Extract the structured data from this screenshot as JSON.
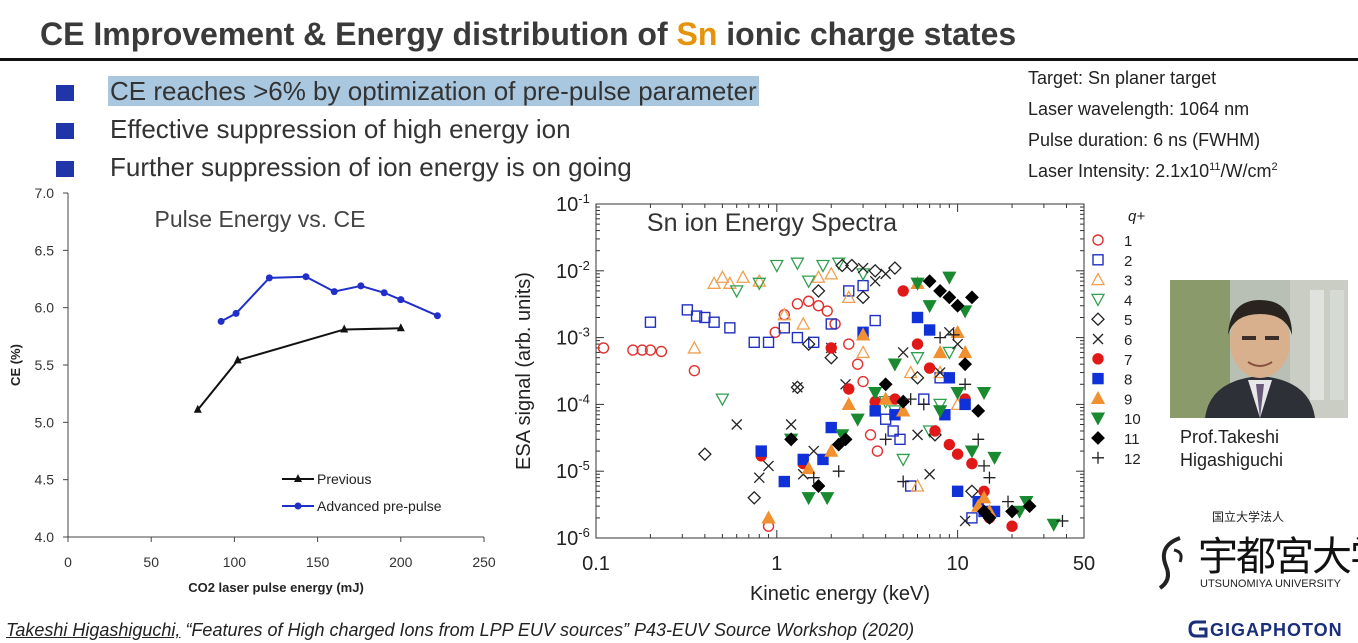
{
  "slide": {
    "title_pre": "CE Improvement & Energy distribution of ",
    "title_sn": "Sn",
    "title_post": " ionic charge states",
    "bullets": [
      "CE reaches >6% by optimization of pre-pulse parameter",
      "Effective suppression of high energy ion",
      "Further suppression of ion energy is on going"
    ],
    "params": {
      "target": "Target: Sn planer target",
      "wavelength": "Laser wavelength: 1064 nm",
      "duration": "Pulse duration: 6 ns (FWHM)",
      "intensity_pre": "Laser Intensity: 2.1x10",
      "intensity_exp": "11",
      "intensity_post": "/W/cm",
      "intensity_sq": "2"
    },
    "person": {
      "line1": "Prof.Takeshi",
      "line2": "Higashiguchi"
    },
    "university": {
      "small": "国立大学法人",
      "name": "宇都宮大学",
      "english": "UTSUNOMIYA UNIVERSITY"
    },
    "company": "GIGAPHOTON",
    "reference": {
      "author": "Takeshi Higashiguchi,",
      "text": " “Features of High charged Ions from LPP EUV sources” P43-EUV Source Workshop (2020)"
    }
  },
  "colors": {
    "sn": "#e6920a",
    "bullet": "#1f35a8",
    "highlight": "#a9c8e0",
    "advanced": "#1f2fc8",
    "previous": "#111111"
  },
  "chart_data": [
    {
      "type": "line",
      "title": "Pulse Energy vs. CE",
      "xlabel": "CO2 laser pulse energy (mJ)",
      "ylabel": "CE (%)",
      "xlim": [
        0,
        250
      ],
      "ylim": [
        4.0,
        7.0
      ],
      "xticks": [
        "0",
        "50",
        "100",
        "150",
        "200",
        "250"
      ],
      "yticks": [
        "4.0",
        "4.5",
        "5.0",
        "5.5",
        "6.0",
        "6.5",
        "7.0"
      ],
      "legend": "bottom-right",
      "series": [
        {
          "name": "Previous",
          "marker": "triangle",
          "x": [
            78,
            102,
            166,
            200
          ],
          "y": [
            5.11,
            5.54,
            5.81,
            5.82
          ]
        },
        {
          "name": "Advanced pre-pulse",
          "marker": "circle",
          "x": [
            92,
            101,
            121,
            143,
            160,
            176,
            190,
            200,
            222
          ],
          "y": [
            5.88,
            5.95,
            6.26,
            6.27,
            6.14,
            6.19,
            6.13,
            6.07,
            5.93
          ]
        }
      ]
    },
    {
      "type": "scatter",
      "title": "Sn ion Energy Spectra",
      "xlabel": "Kinetic energy (keV)",
      "ylabel": "ESA signal (arb. units)",
      "xscale": "log",
      "yscale": "log",
      "xlim": [
        0.1,
        50
      ],
      "ylim": [
        1e-06,
        0.1
      ],
      "xticks": [
        "0.1",
        "1",
        "10",
        "50"
      ],
      "ytick_base": "10",
      "ytick_exps": [
        "-1",
        "-2",
        "-3",
        "-4",
        "-5",
        "-6"
      ],
      "legend_title": "q+",
      "legend": "right",
      "series": [
        {
          "name": "1",
          "marker": "circle-open",
          "color": "#e23030",
          "points": [
            [
              0.11,
              0.0007
            ],
            [
              0.16,
              0.00065
            ],
            [
              0.18,
              0.00065
            ],
            [
              0.2,
              0.00065
            ],
            [
              0.23,
              0.00062
            ],
            [
              0.35,
              0.00032
            ],
            [
              0.9,
              1.5e-06
            ],
            [
              0.98,
              0.0012
            ],
            [
              1.1,
              0.0022
            ],
            [
              1.3,
              0.0032
            ],
            [
              1.5,
              0.0035
            ],
            [
              1.7,
              0.003
            ],
            [
              1.9,
              0.0025
            ],
            [
              2.1,
              0.0016
            ],
            [
              2.5,
              0.0008
            ],
            [
              2.8,
              0.0004
            ],
            [
              3.0,
              0.00022
            ],
            [
              3.3,
              3.5e-05
            ],
            [
              3.6,
              2e-05
            ]
          ]
        },
        {
          "name": "2",
          "marker": "square-open",
          "color": "#2030c0",
          "points": [
            [
              0.2,
              0.0017
            ],
            [
              0.32,
              0.0026
            ],
            [
              0.36,
              0.0021
            ],
            [
              0.4,
              0.002
            ],
            [
              0.45,
              0.0017
            ],
            [
              0.55,
              0.0014
            ],
            [
              0.75,
              0.00085
            ],
            [
              0.9,
              0.00085
            ],
            [
              1.1,
              0.0014
            ],
            [
              1.3,
              0.001
            ],
            [
              1.6,
              0.00085
            ],
            [
              2.0,
              0.0016
            ],
            [
              2.5,
              0.005
            ],
            [
              3.0,
              0.006
            ],
            [
              3.5,
              0.0018
            ],
            [
              4.0,
              6e-05
            ],
            [
              4.4,
              4e-05
            ],
            [
              4.8,
              3e-05
            ],
            [
              5.5,
              6e-06
            ],
            [
              6.5,
              0.00012
            ],
            [
              8.0,
              0.00025
            ],
            [
              12,
              2e-06
            ]
          ]
        },
        {
          "name": "3",
          "marker": "triangle-open",
          "color": "#f0a050",
          "points": [
            [
              0.35,
              0.0007
            ],
            [
              0.45,
              0.0065
            ],
            [
              0.5,
              0.008
            ],
            [
              0.55,
              0.0065
            ],
            [
              0.65,
              0.008
            ],
            [
              0.8,
              0.007
            ],
            [
              1.1,
              0.0022
            ],
            [
              1.4,
              0.0016
            ],
            [
              1.7,
              0.008
            ],
            [
              2.0,
              0.009
            ],
            [
              2.5,
              0.004
            ],
            [
              3.0,
              0.0006
            ],
            [
              5.5,
              0.0003
            ],
            [
              6.0,
              6e-06
            ],
            [
              8.0,
              0.0003
            ],
            [
              10,
              0.0001
            ]
          ]
        },
        {
          "name": "4",
          "marker": "triangle-down-open",
          "color": "#30a050",
          "points": [
            [
              0.5,
              0.00012
            ],
            [
              0.6,
              0.005
            ],
            [
              0.8,
              0.0065
            ],
            [
              1.0,
              0.012
            ],
            [
              1.3,
              0.013
            ],
            [
              1.5,
              0.007
            ],
            [
              1.8,
              0.012
            ],
            [
              2.2,
              0.013
            ],
            [
              3.0,
              0.009
            ],
            [
              4.0,
              0.00011
            ],
            [
              4.5,
              8e-05
            ],
            [
              5.0,
              1.5e-05
            ],
            [
              6.0,
              0.0005
            ],
            [
              7.0,
              4e-05
            ],
            [
              8.0,
              0.0001
            ],
            [
              9.0,
              0.0006
            ]
          ]
        },
        {
          "name": "5",
          "marker": "diamond-open",
          "color": "#222222",
          "points": [
            [
              0.4,
              1.8e-05
            ],
            [
              0.75,
              4e-06
            ],
            [
              1.3,
              0.00018
            ],
            [
              1.5,
              0.0008
            ],
            [
              1.7,
              0.005
            ],
            [
              2.0,
              0.0005
            ],
            [
              2.3,
              0.012
            ],
            [
              2.6,
              0.012
            ],
            [
              3.0,
              0.004
            ],
            [
              3.5,
              0.01
            ],
            [
              4.5,
              0.011
            ],
            [
              6.0,
              0.00025
            ],
            [
              7.5,
              3.5e-05
            ],
            [
              12,
              5e-06
            ]
          ]
        },
        {
          "name": "6",
          "marker": "x",
          "color": "#222222",
          "points": [
            [
              0.6,
              5e-05
            ],
            [
              0.8,
              8e-06
            ],
            [
              0.9,
              1.2e-05
            ],
            [
              1.2,
              5e-05
            ],
            [
              1.3,
              0.00018
            ],
            [
              1.4,
              9e-06
            ],
            [
              1.6,
              2e-05
            ],
            [
              2.0,
              0.0007
            ],
            [
              2.4,
              0.0002
            ],
            [
              3.0,
              0.011
            ],
            [
              3.5,
              0.007
            ],
            [
              4.0,
              0.009
            ],
            [
              5.0,
              0.0006
            ],
            [
              6.0,
              3.5e-05
            ],
            [
              7.0,
              9e-06
            ],
            [
              8.0,
              0.0003
            ],
            [
              9.0,
              0.0012
            ],
            [
              10,
              0.0008
            ],
            [
              11,
              1.8e-06
            ]
          ]
        },
        {
          "name": "7",
          "marker": "circle",
          "color": "#e01818",
          "points": [
            [
              0.82,
              1.7e-05
            ],
            [
              1.4,
              1.3e-05
            ],
            [
              2.0,
              0.0007
            ],
            [
              2.5,
              0.00017
            ],
            [
              3.5,
              0.00011
            ],
            [
              4.5,
              0.00012
            ],
            [
              5.0,
              0.005
            ],
            [
              6.0,
              0.0008
            ],
            [
              7.0,
              0.00035
            ],
            [
              7.5,
              4e-05
            ],
            [
              9.0,
              2.5e-05
            ],
            [
              10,
              1.8e-05
            ],
            [
              11,
              0.00012
            ],
            [
              12,
              1.3e-05
            ],
            [
              14,
              5e-06
            ],
            [
              15,
              2e-06
            ],
            [
              20,
              1.5e-06
            ]
          ]
        },
        {
          "name": "8",
          "marker": "square",
          "color": "#1030d8",
          "points": [
            [
              0.82,
              2e-05
            ],
            [
              1.1,
              7e-06
            ],
            [
              1.4,
              1.5e-05
            ],
            [
              1.8,
              1.5e-05
            ],
            [
              2.0,
              4.5e-05
            ],
            [
              3.0,
              0.0012
            ],
            [
              3.5,
              8e-05
            ],
            [
              4.5,
              7e-05
            ],
            [
              6.0,
              0.002
            ],
            [
              7.0,
              0.0013
            ],
            [
              8.5,
              7e-05
            ],
            [
              9.0,
              0.00025
            ],
            [
              10,
              5e-06
            ],
            [
              11,
              0.0001
            ],
            [
              13,
              3.5e-06
            ],
            [
              14,
              2.5e-06
            ],
            [
              16,
              2.5e-06
            ]
          ]
        },
        {
          "name": "9",
          "marker": "triangle",
          "color": "#f09030",
          "points": [
            [
              0.9,
              2e-06
            ],
            [
              1.5,
              1.1e-05
            ],
            [
              2.0,
              2e-05
            ],
            [
              2.5,
              0.0001
            ],
            [
              3.0,
              0.0011
            ],
            [
              4.0,
              0.00012
            ],
            [
              5.0,
              8e-05
            ],
            [
              6.0,
              0.0065
            ],
            [
              8.0,
              0.0006
            ],
            [
              10,
              0.0012
            ],
            [
              11,
              0.0006
            ],
            [
              13,
              3e-06
            ],
            [
              14,
              4e-06
            ],
            [
              15,
              2.5e-06
            ]
          ]
        },
        {
          "name": "10",
          "marker": "triangle-down",
          "color": "#1a8a30",
          "points": [
            [
              1.2,
              3e-05
            ],
            [
              1.5,
              4e-06
            ],
            [
              1.9,
              4e-06
            ],
            [
              2.3,
              3.5e-05
            ],
            [
              2.8,
              6e-05
            ],
            [
              3.5,
              0.00015
            ],
            [
              4.5,
              0.0004
            ],
            [
              6.0,
              0.0065
            ],
            [
              7.0,
              0.003
            ],
            [
              8.0,
              8e-05
            ],
            [
              9.0,
              0.008
            ],
            [
              10,
              0.00015
            ],
            [
              11,
              0.0025
            ],
            [
              12,
              2e-05
            ],
            [
              14,
              0.00015
            ],
            [
              16,
              1.6e-05
            ],
            [
              22,
              2.5e-06
            ],
            [
              24,
              3.5e-06
            ],
            [
              34,
              1.6e-06
            ]
          ]
        },
        {
          "name": "11",
          "marker": "diamond",
          "color": "#000000",
          "points": [
            [
              1.2,
              3e-05
            ],
            [
              1.7,
              6e-06
            ],
            [
              2.2,
              2.5e-05
            ],
            [
              2.4,
              3e-05
            ],
            [
              4.0,
              0.0002
            ],
            [
              5.0,
              0.00011
            ],
            [
              7.0,
              0.007
            ],
            [
              8.0,
              0.005
            ],
            [
              9.0,
              0.004
            ],
            [
              10,
              0.003
            ],
            [
              11,
              0.0004
            ],
            [
              12,
              0.004
            ],
            [
              13,
              8e-05
            ],
            [
              14,
              2.5e-06
            ],
            [
              15,
              2e-06
            ],
            [
              20,
              2.5e-06
            ],
            [
              25,
              3e-06
            ]
          ]
        },
        {
          "name": "12",
          "marker": "plus",
          "color": "#222222",
          "points": [
            [
              1.6,
              8e-06
            ],
            [
              2.2,
              1e-05
            ],
            [
              4.0,
              3e-05
            ],
            [
              5.0,
              7e-06
            ],
            [
              5.5,
              0.00012
            ],
            [
              6.5,
              0.0001
            ],
            [
              8.0,
              0.001
            ],
            [
              9.5,
              0.0011
            ],
            [
              11,
              0.0002
            ],
            [
              13,
              3e-05
            ],
            [
              14,
              1.2e-05
            ],
            [
              15,
              8e-06
            ],
            [
              19,
              3.5e-06
            ],
            [
              38,
              1.8e-06
            ]
          ]
        }
      ]
    }
  ]
}
